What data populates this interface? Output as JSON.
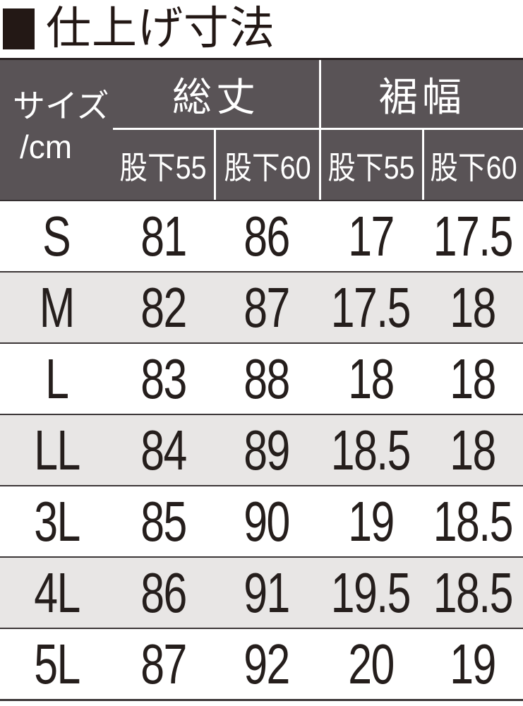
{
  "title": "仕上げ寸法",
  "colors": {
    "header_bg": "#595356",
    "header_text": "#ffffff",
    "zebra_row_bg": "#e8e6e5",
    "text": "#251e1c",
    "title_square": "#231815",
    "rule_dark": "#3c3637"
  },
  "table": {
    "size_header": {
      "line1": "サイズ",
      "line2": "/cm"
    },
    "groups": [
      {
        "label": "総丈"
      },
      {
        "label": "裾幅"
      }
    ],
    "sub_headers": [
      "股下55",
      "股下60",
      "股下55",
      "股下60"
    ],
    "unit": "cm",
    "rows": [
      {
        "size": "S",
        "values": [
          "81",
          "86",
          "17",
          "17.5"
        ]
      },
      {
        "size": "M",
        "values": [
          "82",
          "87",
          "17.5",
          "18"
        ]
      },
      {
        "size": "L",
        "values": [
          "83",
          "88",
          "18",
          "18"
        ]
      },
      {
        "size": "LL",
        "values": [
          "84",
          "89",
          "18.5",
          "18"
        ]
      },
      {
        "size": "3L",
        "values": [
          "85",
          "90",
          "19",
          "18.5"
        ]
      },
      {
        "size": "4L",
        "values": [
          "86",
          "91",
          "19.5",
          "18.5"
        ]
      },
      {
        "size": "5L",
        "values": [
          "87",
          "92",
          "20",
          "19"
        ]
      }
    ]
  }
}
